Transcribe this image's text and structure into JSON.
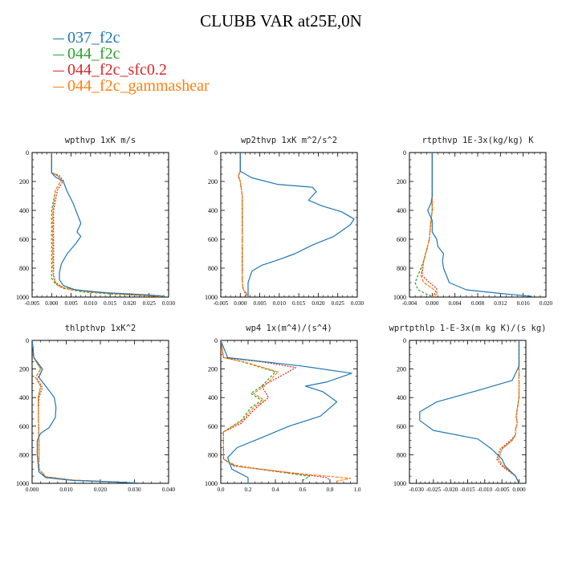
{
  "page_title": "CLUBB VAR at25E,0N",
  "legend": [
    {
      "name": "037_f2c",
      "color": "#1f77b4"
    },
    {
      "name": "044_f2c",
      "color": "#2ca02c"
    },
    {
      "name": "044_f2c_sfc0.2",
      "color": "#d62728"
    },
    {
      "name": "044_f2c_gammashear",
      "color": "#ff7f0e"
    }
  ],
  "chart_data": [
    {
      "type": "line",
      "title": "wpthvp  1xK m/s",
      "xlim": [
        -0.005,
        0.03
      ],
      "ylim": [
        0,
        1000
      ],
      "y_inverted": true,
      "xticks": [
        -0.005,
        0.0,
        0.005,
        0.01,
        0.015,
        0.02,
        0.025,
        0.03
      ],
      "xtick_labels": [
        "-0.005",
        "0.000",
        "0.005",
        "0.010",
        "0.015",
        "0.020",
        "0.025",
        "0.030"
      ],
      "yticks": [
        0,
        200,
        400,
        600,
        800,
        1000
      ],
      "ytick_labels": [
        "0",
        "200",
        "400",
        "600",
        "800",
        "1000"
      ],
      "series": [
        {
          "name": "037_f2c",
          "x": [
            0.0,
            0.0,
            0.001,
            0.003,
            0.004,
            0.0055,
            0.0065,
            0.0075,
            0.0065,
            0.0075,
            0.0062,
            0.004,
            0.0025,
            0.002,
            0.002,
            0.003,
            0.006,
            0.014,
            0.025,
            0.029
          ],
          "y": [
            0,
            140,
            170,
            200,
            270,
            350,
            420,
            490,
            550,
            580,
            630,
            700,
            770,
            830,
            880,
            920,
            950,
            970,
            985,
            995
          ]
        },
        {
          "name": "044_f2c",
          "x": [
            0.0,
            0.0,
            0.0015,
            0.0025,
            0.001,
            0.0,
            0.0,
            0.0,
            0.0,
            0.0,
            0.001,
            0.003,
            0.008,
            0.016,
            0.024,
            0.029
          ],
          "y": [
            0,
            140,
            160,
            190,
            260,
            400,
            600,
            700,
            800,
            870,
            910,
            940,
            965,
            980,
            990,
            998
          ]
        },
        {
          "name": "044_f2c_sfc0.2",
          "x": [
            0.0,
            0.0,
            0.002,
            0.003,
            0.0015,
            0.0005,
            0.0005,
            0.0005,
            0.0005,
            0.001,
            0.003,
            0.009,
            0.017,
            0.025,
            0.029
          ],
          "y": [
            0,
            140,
            160,
            195,
            260,
            400,
            600,
            750,
            850,
            900,
            935,
            960,
            978,
            990,
            998
          ]
        },
        {
          "name": "044_f2c_gammashear",
          "x": [
            0.0,
            0.0,
            0.0015,
            0.0025,
            0.001,
            0.0003,
            0.0003,
            0.0003,
            0.0005,
            0.0015,
            0.005,
            0.012,
            0.021,
            0.028
          ],
          "y": [
            0,
            140,
            160,
            190,
            260,
            400,
            600,
            780,
            870,
            920,
            950,
            970,
            985,
            996
          ]
        }
      ]
    },
    {
      "type": "line",
      "title": "wp2thvp  1xK m^2/s^2",
      "xlim": [
        -0.005,
        0.03
      ],
      "ylim": [
        0,
        1000
      ],
      "y_inverted": true,
      "xticks": [
        -0.005,
        0.0,
        0.005,
        0.01,
        0.015,
        0.02,
        0.025,
        0.03
      ],
      "xtick_labels": [
        "-0.005",
        "0.000",
        "0.005",
        "0.010",
        "0.015",
        "0.020",
        "0.025",
        "0.030"
      ],
      "yticks": [
        0,
        200,
        400,
        600,
        800,
        1000
      ],
      "ytick_labels": [
        "0",
        "200",
        "400",
        "600",
        "800",
        "1000"
      ],
      "series": [
        {
          "name": "037_f2c",
          "x": [
            0.0,
            0.0,
            0.003,
            0.0095,
            0.0185,
            0.0195,
            0.0175,
            0.021,
            0.026,
            0.0292,
            0.0282,
            0.024,
            0.0185,
            0.014,
            0.01,
            0.0055,
            0.003,
            0.002,
            0.002
          ],
          "y": [
            0,
            130,
            175,
            220,
            240,
            270,
            330,
            370,
            410,
            460,
            500,
            580,
            640,
            700,
            740,
            780,
            820,
            900,
            1000
          ]
        },
        {
          "name": "044_f2c",
          "x": [
            0.0,
            0.0,
            -0.0005,
            0.0,
            0.0005,
            0.0005,
            0.0005,
            0.0005,
            0.0008,
            0.002,
            0.002
          ],
          "y": [
            0,
            130,
            160,
            200,
            300,
            500,
            700,
            900,
            950,
            985,
            1000
          ]
        },
        {
          "name": "044_f2c_sfc0.2",
          "x": [
            0.0,
            0.0,
            -0.0005,
            0.0,
            0.0005,
            0.0005,
            0.0005,
            0.0005,
            0.0008,
            0.0015,
            0.0015
          ],
          "y": [
            0,
            130,
            165,
            200,
            300,
            500,
            700,
            900,
            950,
            985,
            1000
          ]
        },
        {
          "name": "044_f2c_gammashear",
          "x": [
            0.0,
            0.0,
            -0.0005,
            0.0,
            0.0005,
            0.0005,
            0.0005,
            0.0005,
            0.0008,
            0.0018,
            0.0018
          ],
          "y": [
            0,
            130,
            160,
            200,
            300,
            500,
            700,
            900,
            950,
            985,
            1000
          ]
        }
      ]
    },
    {
      "type": "line",
      "title": "rtpthvp  1E-3x(kg/kg) K",
      "xlim": [
        -0.004,
        0.02
      ],
      "ylim": [
        0,
        1000
      ],
      "y_inverted": true,
      "xticks": [
        -0.004,
        0.0,
        0.004,
        0.008,
        0.012,
        0.016,
        0.02
      ],
      "xtick_labels": [
        "-0.004",
        "0.000",
        "0.004",
        "0.008",
        "0.012",
        "0.016",
        "0.020"
      ],
      "yticks": [
        0,
        200,
        400,
        600,
        800,
        1000
      ],
      "ytick_labels": [
        "0",
        "200",
        "400",
        "600",
        "800",
        "1000"
      ],
      "series": [
        {
          "name": "037_f2c",
          "x": [
            0.0,
            0.0,
            -0.0002,
            -0.0008,
            0.0,
            0.0,
            0.0008,
            0.001,
            0.002,
            0.0018,
            0.002,
            0.003,
            0.006,
            0.012,
            0.0175
          ],
          "y": [
            0,
            300,
            350,
            400,
            470,
            550,
            600,
            650,
            700,
            750,
            800,
            900,
            950,
            975,
            995
          ]
        },
        {
          "name": "044_f2c",
          "x": [
            0.0,
            0.0,
            -0.0003,
            -0.0005,
            -0.0015,
            -0.0025,
            -0.003,
            -0.0025,
            -0.001,
            0.0,
            0.0
          ],
          "y": [
            0,
            400,
            500,
            600,
            750,
            850,
            900,
            950,
            980,
            995,
            1000
          ]
        },
        {
          "name": "044_f2c_sfc0.2",
          "x": [
            0.0,
            0.0,
            -0.0003,
            -0.0005,
            -0.0015,
            -0.0018,
            -0.0005,
            0.0008,
            0.0005,
            0.0,
            0.0
          ],
          "y": [
            0,
            400,
            500,
            600,
            750,
            850,
            900,
            940,
            975,
            995,
            1000
          ]
        },
        {
          "name": "044_f2c_gammashear",
          "x": [
            0.0,
            0.0,
            -0.0003,
            -0.0005,
            -0.0015,
            -0.002,
            -0.0015,
            0.0,
            0.001,
            0.0005,
            0.0
          ],
          "y": [
            0,
            400,
            500,
            600,
            750,
            850,
            900,
            940,
            970,
            990,
            1000
          ]
        }
      ]
    },
    {
      "type": "line",
      "title": "thlpthvp  1xK^2",
      "xlim": [
        0.0,
        0.04
      ],
      "ylim": [
        0,
        1000
      ],
      "y_inverted": true,
      "xticks": [
        0.0,
        0.01,
        0.02,
        0.03,
        0.04
      ],
      "xtick_labels": [
        "0.000",
        "0.010",
        "0.020",
        "0.030",
        "0.040"
      ],
      "yticks": [
        0,
        200,
        400,
        600,
        800,
        1000
      ],
      "ytick_labels": [
        "0",
        "200",
        "400",
        "600",
        "800",
        "1000"
      ],
      "series": [
        {
          "name": "037_f2c",
          "x": [
            0.0,
            0.0005,
            0.003,
            0.002,
            0.004,
            0.0065,
            0.007,
            0.0068,
            0.005,
            0.0025,
            0.0015,
            0.0015,
            0.002,
            0.004,
            0.012,
            0.024,
            0.031
          ],
          "y": [
            0,
            120,
            200,
            260,
            320,
            400,
            470,
            540,
            610,
            650,
            700,
            800,
            920,
            960,
            980,
            990,
            998
          ]
        },
        {
          "name": "044_f2c",
          "x": [
            0.0,
            0.0005,
            0.0025,
            0.001,
            0.0025,
            0.0018,
            0.0018,
            0.002,
            0.002,
            0.004,
            0.012,
            0.024,
            0.031
          ],
          "y": [
            0,
            120,
            200,
            260,
            320,
            400,
            500,
            700,
            900,
            955,
            978,
            990,
            998
          ]
        },
        {
          "name": "044_f2c_sfc0.2",
          "x": [
            0.0,
            0.0005,
            0.003,
            0.0015,
            0.003,
            0.002,
            0.0018,
            0.002,
            0.002,
            0.004,
            0.012,
            0.024,
            0.031
          ],
          "y": [
            0,
            120,
            205,
            270,
            330,
            400,
            500,
            700,
            900,
            955,
            978,
            990,
            998
          ]
        },
        {
          "name": "044_f2c_gammashear",
          "x": [
            0.0,
            0.0005,
            0.0025,
            0.001,
            0.0025,
            0.0018,
            0.0018,
            0.002,
            0.002,
            0.004,
            0.012,
            0.024,
            0.031
          ],
          "y": [
            0,
            120,
            200,
            260,
            320,
            400,
            500,
            700,
            900,
            955,
            978,
            990,
            998
          ]
        }
      ]
    },
    {
      "type": "line",
      "title": "wp4  1x(m^4)/(s^4)",
      "xlim": [
        0.0,
        1.0
      ],
      "ylim": [
        0,
        1000
      ],
      "y_inverted": true,
      "xticks": [
        0.0,
        0.2,
        0.4,
        0.6,
        0.8,
        1.0
      ],
      "xtick_labels": [
        "0.0",
        "0.2",
        "0.4",
        "0.6",
        "0.8",
        "1.0"
      ],
      "yticks": [
        0,
        200,
        400,
        600,
        800,
        1000
      ],
      "ytick_labels": [
        "0",
        "200",
        "400",
        "600",
        "800",
        "1000"
      ],
      "series": [
        {
          "name": "037_f2c",
          "x": [
            0.0,
            0.05,
            0.6,
            0.96,
            0.78,
            0.62,
            0.75,
            0.85,
            0.73,
            0.5,
            0.3,
            0.12,
            0.05,
            0.08,
            0.2,
            0.2
          ],
          "y": [
            0,
            120,
            180,
            230,
            290,
            320,
            360,
            430,
            530,
            600,
            680,
            750,
            820,
            900,
            960,
            1000
          ]
        },
        {
          "name": "044_f2c",
          "x": [
            0.0,
            0.02,
            0.16,
            0.4,
            0.3,
            0.22,
            0.3,
            0.22,
            0.15,
            0.02,
            0.02,
            0.08,
            0.35,
            0.65,
            0.6,
            0.6
          ],
          "y": [
            0,
            120,
            150,
            220,
            320,
            370,
            420,
            470,
            560,
            640,
            830,
            870,
            910,
            950,
            980,
            1000
          ]
        },
        {
          "name": "044_f2c_sfc0.2",
          "x": [
            0.0,
            0.02,
            0.3,
            0.55,
            0.42,
            0.3,
            0.35,
            0.25,
            0.15,
            0.02,
            0.02,
            0.1,
            0.45,
            0.78,
            0.8,
            0.8
          ],
          "y": [
            0,
            120,
            150,
            190,
            260,
            320,
            400,
            480,
            580,
            640,
            830,
            880,
            920,
            960,
            985,
            1000
          ]
        },
        {
          "name": "044_f2c_gammashear",
          "x": [
            0.0,
            0.02,
            0.17,
            0.42,
            0.32,
            0.24,
            0.32,
            0.24,
            0.16,
            0.02,
            0.02,
            0.12,
            0.55,
            0.95,
            0.85,
            0.85
          ],
          "y": [
            0,
            120,
            150,
            220,
            320,
            370,
            420,
            470,
            560,
            640,
            830,
            880,
            930,
            965,
            985,
            1000
          ]
        }
      ]
    },
    {
      "type": "line",
      "title": "wprtpthlp  1-E-3x(m kg K)/(s kg)",
      "xlim": [
        -0.032,
        0.002
      ],
      "ylim": [
        0,
        1000
      ],
      "y_inverted": true,
      "xticks": [
        -0.03,
        -0.025,
        -0.02,
        -0.015,
        -0.01,
        -0.005,
        0.0
      ],
      "xtick_labels": [
        "-0.030",
        "-0.025",
        "-0.020",
        "-0.015",
        "-0.010",
        "-0.005",
        "0.000"
      ],
      "yticks": [
        0,
        200,
        400,
        600,
        800,
        1000
      ],
      "ytick_labels": [
        "0",
        "200",
        "400",
        "600",
        "800",
        "1000"
      ],
      "series": [
        {
          "name": "037_f2c",
          "x": [
            0.0,
            0.0,
            -0.002,
            -0.012,
            -0.024,
            -0.029,
            -0.029,
            -0.025,
            -0.012,
            -0.008,
            -0.005,
            -0.004,
            -0.001,
            0.0
          ],
          "y": [
            0,
            180,
            280,
            350,
            430,
            500,
            560,
            630,
            690,
            760,
            830,
            880,
            950,
            1000
          ]
        },
        {
          "name": "044_f2c",
          "x": [
            0.0,
            0.0,
            0.0,
            -0.0005,
            -0.0008,
            -0.0005,
            -0.001,
            -0.001,
            -0.002,
            -0.005,
            -0.006,
            -0.0045,
            -0.001,
            0.0
          ],
          "y": [
            0,
            180,
            400,
            480,
            530,
            580,
            620,
            660,
            700,
            760,
            830,
            880,
            950,
            1000
          ]
        },
        {
          "name": "044_f2c_sfc0.2",
          "x": [
            0.0,
            0.0,
            0.0,
            -0.0005,
            -0.0008,
            -0.0005,
            -0.001,
            -0.001,
            -0.0025,
            -0.0055,
            -0.0065,
            -0.005,
            -0.001,
            0.0
          ],
          "y": [
            0,
            180,
            400,
            480,
            530,
            580,
            620,
            660,
            700,
            760,
            830,
            880,
            950,
            1000
          ]
        },
        {
          "name": "044_f2c_gammashear",
          "x": [
            0.0,
            0.0,
            0.0,
            -0.0005,
            -0.0008,
            -0.0005,
            -0.001,
            -0.001,
            -0.002,
            -0.005,
            -0.006,
            -0.0045,
            -0.001,
            0.0
          ],
          "y": [
            0,
            180,
            400,
            480,
            530,
            580,
            620,
            660,
            700,
            760,
            830,
            880,
            950,
            1000
          ]
        }
      ]
    }
  ]
}
